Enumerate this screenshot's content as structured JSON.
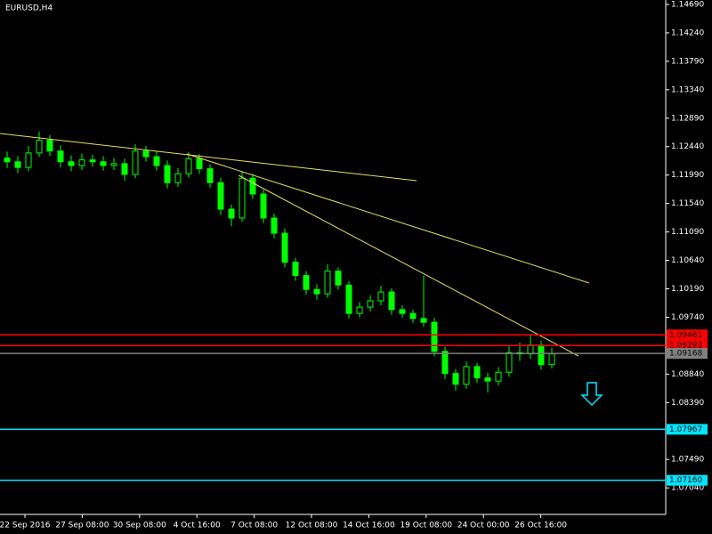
{
  "chart_data": {
    "type": "candlestick",
    "title": "EURUSD,H4",
    "color": "#00ff00",
    "open": [
      1.1226,
      1.122,
      1.1211,
      1.1234,
      1.1254,
      1.1237,
      1.122,
      1.1214,
      1.1223,
      1.122,
      1.1214,
      1.1217,
      1.12,
      1.1237,
      1.1228,
      1.1214,
      1.1187,
      1.1201,
      1.1225,
      1.1209,
      1.1187,
      1.1145,
      1.1131,
      1.1194,
      1.1169,
      1.1131,
      1.1107,
      1.1061,
      1.104,
      1.1018,
      1.1011,
      1.1047,
      1.1025,
      1.098,
      1.099,
      1.1,
      1.1014,
      1.0986,
      1.098,
      1.0972,
      1.0966,
      1.092,
      1.0885,
      1.0868,
      1.0896,
      1.0878,
      1.0873,
      1.0887,
      1.0918,
      1.0916,
      1.093,
      1.0899
    ],
    "high": [
      1.1236,
      1.1229,
      1.1245,
      1.1268,
      1.1262,
      1.1246,
      1.123,
      1.1233,
      1.1231,
      1.1229,
      1.1226,
      1.1225,
      1.1248,
      1.1245,
      1.1236,
      1.1222,
      1.121,
      1.1235,
      1.1232,
      1.1216,
      1.1195,
      1.1152,
      1.1205,
      1.1201,
      1.1176,
      1.1138,
      1.1114,
      1.1068,
      1.1047,
      1.1026,
      1.1058,
      1.1053,
      1.1031,
      1.0998,
      1.1009,
      1.1024,
      1.102,
      1.0993,
      1.0986,
      1.104,
      1.0973,
      1.0927,
      1.0892,
      1.0904,
      1.0902,
      1.0886,
      1.0895,
      1.0928,
      1.0934,
      1.0945,
      1.0937,
      1.0926
    ],
    "low": [
      1.121,
      1.1202,
      1.1205,
      1.1228,
      1.1229,
      1.1211,
      1.1205,
      1.1207,
      1.1212,
      1.1206,
      1.1207,
      1.119,
      1.1194,
      1.122,
      1.1206,
      1.1178,
      1.118,
      1.1195,
      1.1201,
      1.1179,
      1.1136,
      1.1118,
      1.1125,
      1.1161,
      1.1123,
      1.1099,
      1.1053,
      1.1032,
      1.101,
      1.1002,
      1.1005,
      1.1018,
      1.0972,
      1.0974,
      1.0983,
      1.0993,
      1.0978,
      1.0973,
      1.0965,
      1.0959,
      1.0912,
      1.0876,
      1.0858,
      1.0861,
      1.087,
      1.0855,
      1.0866,
      1.088,
      1.0905,
      1.0908,
      1.0891,
      1.0893
    ],
    "close": [
      1.122,
      1.1211,
      1.1234,
      1.1254,
      1.1237,
      1.122,
      1.1214,
      1.1223,
      1.122,
      1.1214,
      1.1217,
      1.12,
      1.1237,
      1.1228,
      1.1214,
      1.1187,
      1.1201,
      1.1225,
      1.1209,
      1.1187,
      1.1145,
      1.1131,
      1.1194,
      1.1169,
      1.1131,
      1.1107,
      1.1061,
      1.104,
      1.1018,
      1.1011,
      1.1047,
      1.1025,
      1.098,
      1.099,
      1.1,
      1.1014,
      1.0986,
      1.098,
      1.0972,
      1.0966,
      1.092,
      1.0885,
      1.0868,
      1.0896,
      1.0878,
      1.0873,
      1.0887,
      1.0918,
      1.0916,
      1.093,
      1.0899,
      1.0916
    ],
    "x_labels": [
      "22 Sep 2016",
      "27 Sep 08:00",
      "30 Sep 08:00",
      "4 Oct 16:00",
      "7 Oct 08:00",
      "12 Oct 08:00",
      "14 Oct 16:00",
      "19 Oct 08:00",
      "24 Oct 00:00",
      "26 Oct 16:00"
    ],
    "ylim": [
      1.0662,
      1.1476
    ],
    "yticks": [
      {
        "value": 1.1469,
        "label": "1.14690"
      },
      {
        "value": 1.1424,
        "label": "1.14240"
      },
      {
        "value": 1.1379,
        "label": "1.13790"
      },
      {
        "value": 1.1334,
        "label": "1.13340"
      },
      {
        "value": 1.1289,
        "label": "1.12890"
      },
      {
        "value": 1.1244,
        "label": "1.12440"
      },
      {
        "value": 1.1199,
        "label": "1.11990"
      },
      {
        "value": 1.1154,
        "label": "1.11540"
      },
      {
        "value": 1.1109,
        "label": "1.11090"
      },
      {
        "value": 1.1064,
        "label": "1.10640"
      },
      {
        "value": 1.1019,
        "label": "1.10190"
      },
      {
        "value": 1.0974,
        "label": "1.09740"
      },
      {
        "value": 1.0884,
        "label": "1.08840"
      },
      {
        "value": 1.0839,
        "label": "1.08390"
      },
      {
        "value": 1.0749,
        "label": "1.07490"
      },
      {
        "value": 1.0704,
        "label": "1.07040"
      }
    ],
    "price_lines": [
      {
        "value": 1.09461,
        "color": "#ff0000"
      },
      {
        "value": 1.09293,
        "color": "#ff0000"
      },
      {
        "value": 1.09168,
        "color": "#808080"
      },
      {
        "value": 1.07967,
        "color": "#00e5ff"
      },
      {
        "value": 1.0716,
        "label": "1.07160",
        "color": "#00e5ff"
      }
    ]
  }
}
